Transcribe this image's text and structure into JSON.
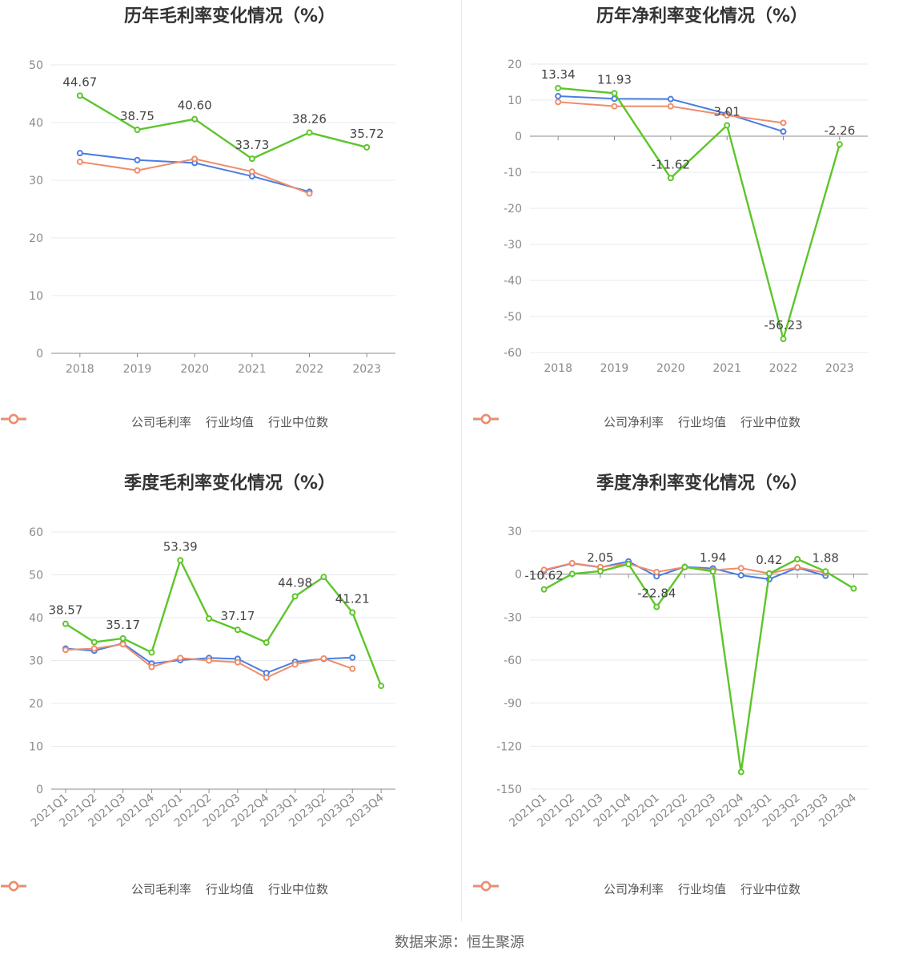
{
  "colors": {
    "company": "#5dc52a",
    "avg": "#4a7de0",
    "median": "#f08c6a"
  },
  "source_text": "数据来源：恒生聚源",
  "chart_data": [
    {
      "type": "line",
      "title": "历年毛利率变化情况（%）",
      "categories": [
        "2018",
        "2019",
        "2020",
        "2021",
        "2022",
        "2023"
      ],
      "ylim": [
        0,
        50
      ],
      "yticks": [
        0,
        10,
        20,
        30,
        40,
        50
      ],
      "series": [
        {
          "name": "公司毛利率",
          "role": "company",
          "values": [
            44.67,
            38.75,
            40.6,
            33.73,
            38.26,
            35.72
          ]
        },
        {
          "name": "行业均值",
          "role": "avg",
          "values": [
            34.7,
            33.5,
            33.0,
            30.7,
            28.0,
            null
          ]
        },
        {
          "name": "行业中位数",
          "role": "median",
          "values": [
            33.2,
            31.7,
            33.7,
            31.5,
            27.7,
            null
          ]
        }
      ],
      "data_labels": [
        "44.67",
        "38.75",
        "40.60",
        "33.73",
        "38.26",
        "35.72"
      ],
      "label_indices": [
        0,
        1,
        2,
        3,
        4,
        5
      ],
      "legend": [
        "公司毛利率",
        "行业均值",
        "行业中位数"
      ],
      "grid": true,
      "legend_position": "bottom"
    },
    {
      "type": "line",
      "title": "历年净利率变化情况（%）",
      "categories": [
        "2018",
        "2019",
        "2020",
        "2021",
        "2022",
        "2023"
      ],
      "ylim": [
        -60,
        20
      ],
      "yticks": [
        -60,
        -50,
        -40,
        -30,
        -20,
        -10,
        0,
        10,
        20
      ],
      "series": [
        {
          "name": "公司净利率",
          "role": "company",
          "values": [
            13.34,
            11.93,
            -11.62,
            3.01,
            -56.23,
            -2.26
          ]
        },
        {
          "name": "行业均值",
          "role": "avg",
          "values": [
            11.1,
            10.4,
            10.3,
            6.2,
            1.3,
            null
          ]
        },
        {
          "name": "行业中位数",
          "role": "median",
          "values": [
            9.5,
            8.3,
            8.3,
            5.8,
            3.7,
            null
          ]
        }
      ],
      "data_labels": [
        "13.34",
        "11.93",
        "-11.62",
        "3.01",
        "-56.23",
        "-2.26"
      ],
      "label_indices": [
        0,
        1,
        2,
        3,
        4,
        5
      ],
      "legend": [
        "公司净利率",
        "行业均值",
        "行业中位数"
      ],
      "grid": true,
      "legend_position": "bottom"
    },
    {
      "type": "line",
      "title": "季度毛利率变化情况（%）",
      "categories": [
        "2021Q1",
        "2021Q2",
        "2021Q3",
        "2021Q4",
        "2022Q1",
        "2022Q2",
        "2022Q3",
        "2022Q4",
        "2023Q1",
        "2023Q2",
        "2023Q3",
        "2023Q4"
      ],
      "ylim": [
        0,
        60
      ],
      "yticks": [
        0,
        10,
        20,
        30,
        40,
        50,
        60
      ],
      "series": [
        {
          "name": "公司毛利率",
          "role": "company",
          "values": [
            38.57,
            34.3,
            35.17,
            31.9,
            53.39,
            39.8,
            37.17,
            34.2,
            44.98,
            49.5,
            41.21,
            24.1
          ]
        },
        {
          "name": "行业均值",
          "role": "avg",
          "values": [
            32.8,
            32.3,
            34.0,
            29.3,
            30.1,
            30.6,
            30.4,
            27.1,
            29.7,
            30.4,
            30.7,
            null
          ]
        },
        {
          "name": "行业中位数",
          "role": "median",
          "values": [
            32.5,
            32.8,
            33.8,
            28.5,
            30.6,
            30.0,
            29.6,
            26.0,
            29.1,
            30.5,
            28.1,
            null
          ]
        }
      ],
      "data_labels": [
        "38.57",
        "35.17",
        "53.39",
        "37.17",
        "44.98",
        "41.21"
      ],
      "label_indices": [
        0,
        2,
        4,
        6,
        8,
        10
      ],
      "legend": [
        "公司毛利率",
        "行业均值",
        "行业中位数"
      ],
      "grid": true,
      "legend_position": "bottom"
    },
    {
      "type": "line",
      "title": "季度净利率变化情况（%）",
      "categories": [
        "2021Q1",
        "2021Q2",
        "2021Q3",
        "2021Q4",
        "2022Q1",
        "2022Q2",
        "2022Q3",
        "2022Q4",
        "2023Q1",
        "2023Q2",
        "2023Q3",
        "2023Q4"
      ],
      "ylim": [
        -150,
        30
      ],
      "yticks": [
        -150,
        -120,
        -90,
        -60,
        -30,
        0,
        30
      ],
      "series": [
        {
          "name": "公司净利率",
          "role": "company",
          "values": [
            -10.62,
            0.2,
            2.05,
            7.0,
            -22.84,
            5.0,
            1.94,
            -138.0,
            0.42,
            10.5,
            1.88,
            -10.0
          ]
        },
        {
          "name": "行业均值",
          "role": "avg",
          "values": [
            2.5,
            7.5,
            4.8,
            8.9,
            -1.5,
            5.1,
            4.0,
            -0.8,
            -3.5,
            4.5,
            -1.1,
            null
          ]
        },
        {
          "name": "行业中位数",
          "role": "median",
          "values": [
            3.0,
            7.7,
            5.0,
            7.2,
            1.5,
            4.9,
            2.8,
            4.2,
            0.5,
            4.8,
            1.0,
            null
          ]
        }
      ],
      "data_labels": [
        "-10.62",
        "2.05",
        "-22.84",
        "1.94",
        "0.42",
        "1.88"
      ],
      "label_indices": [
        0,
        2,
        4,
        6,
        8,
        10
      ],
      "legend": [
        "公司净利率",
        "行业均值",
        "行业中位数"
      ],
      "grid": true,
      "legend_position": "bottom"
    }
  ]
}
